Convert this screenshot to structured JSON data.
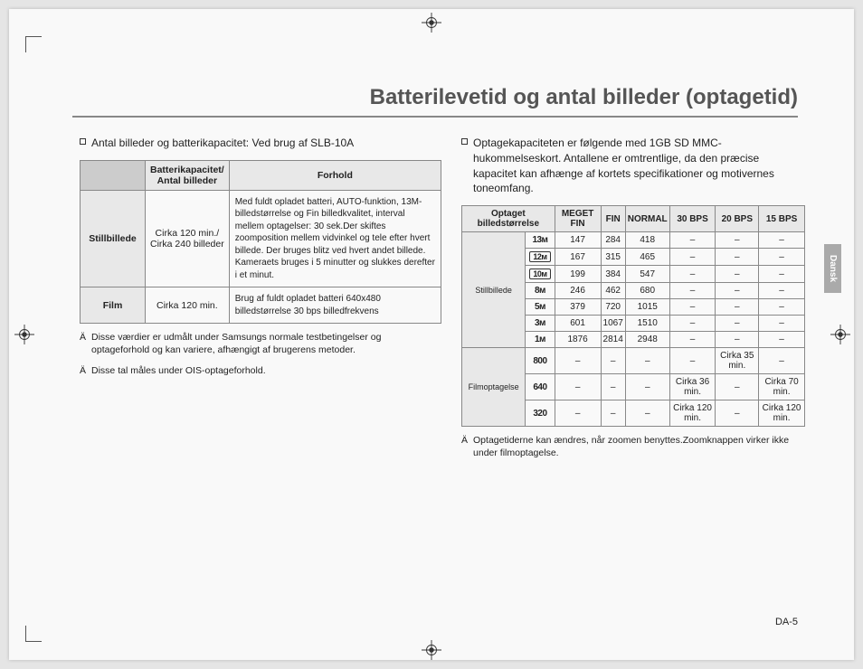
{
  "title": "Batterilevetid og antal billeder (optagetid)",
  "page_number": "DA-5",
  "side_tab": "Dansk",
  "left": {
    "heading": "Antal billeder og batterikapacitet: Ved brug af SLB-10A",
    "table": {
      "headers": [
        "",
        "Batterikapacitet/ Antal billeder",
        "Forhold"
      ],
      "rows": [
        {
          "label": "Stillbillede",
          "cap": "Cirka 120 min./\nCirka 240 billeder",
          "cond": "Med fuldt opladet batteri, AUTO-funktion, 13M-billedstørrelse og Fin billedkvalitet, interval mellem optagelser: 30 sek.Der skiftes zoomposition mellem vidvinkel og tele efter hvert billede. Der bruges blitz ved hvert andet billede. Kameraets bruges i 5 minutter og slukkes derefter i et minut."
        },
        {
          "label": "Film",
          "cap": "Cirka 120 min.",
          "cond": "Brug af fuldt opladet batteri 640x480 billedstørrelse 30 bps billedfrekvens"
        }
      ]
    },
    "foot1": "Disse værdier er udmålt under Samsungs normale testbetingelser og optageforhold og kan variere, afhængigt af brugerens metoder.",
    "foot2": "Disse tal måles under OIS-optageforhold."
  },
  "right": {
    "heading": "Optagekapaciteten er følgende med 1GB SD MMC-hukommelseskort. Antallene er omtrentlige, da den præcise kapacitet kan afhænge af kortets specifikationer og motivernes toneomfang.",
    "table": {
      "headers": [
        "Optaget billedstørrelse",
        "",
        "MEGET FIN",
        "FIN",
        "NORMAL",
        "30 BPS",
        "20 BPS",
        "15 BPS"
      ],
      "group1": "Stillbillede",
      "group2": "Filmoptagelse",
      "still": [
        {
          "ico": "13м",
          "v": [
            "147",
            "284",
            "418",
            "–",
            "–",
            "–"
          ]
        },
        {
          "ico": "12м",
          "box": true,
          "v": [
            "167",
            "315",
            "465",
            "–",
            "–",
            "–"
          ]
        },
        {
          "ico": "10м",
          "box": true,
          "v": [
            "199",
            "384",
            "547",
            "–",
            "–",
            "–"
          ]
        },
        {
          "ico": "8м",
          "v": [
            "246",
            "462",
            "680",
            "–",
            "–",
            "–"
          ]
        },
        {
          "ico": "5м",
          "v": [
            "379",
            "720",
            "1015",
            "–",
            "–",
            "–"
          ]
        },
        {
          "ico": "3м",
          "v": [
            "601",
            "1067",
            "1510",
            "–",
            "–",
            "–"
          ]
        },
        {
          "ico": "1м",
          "v": [
            "1876",
            "2814",
            "2948",
            "–",
            "–",
            "–"
          ]
        }
      ],
      "film": [
        {
          "ico": "800",
          "v": [
            "–",
            "–",
            "–",
            "–",
            "Cirka 35 min.",
            "–"
          ]
        },
        {
          "ico": "640",
          "v": [
            "–",
            "–",
            "–",
            "Cirka 36 min.",
            "–",
            "Cirka 70 min."
          ]
        },
        {
          "ico": "320",
          "v": [
            "–",
            "–",
            "–",
            "Cirka 120 min.",
            "–",
            "Cirka 120 min."
          ]
        }
      ]
    },
    "foot": "Optagetiderne kan ændres, når zoomen benyttes.Zoomknappen virker ikke under filmoptagelse."
  }
}
